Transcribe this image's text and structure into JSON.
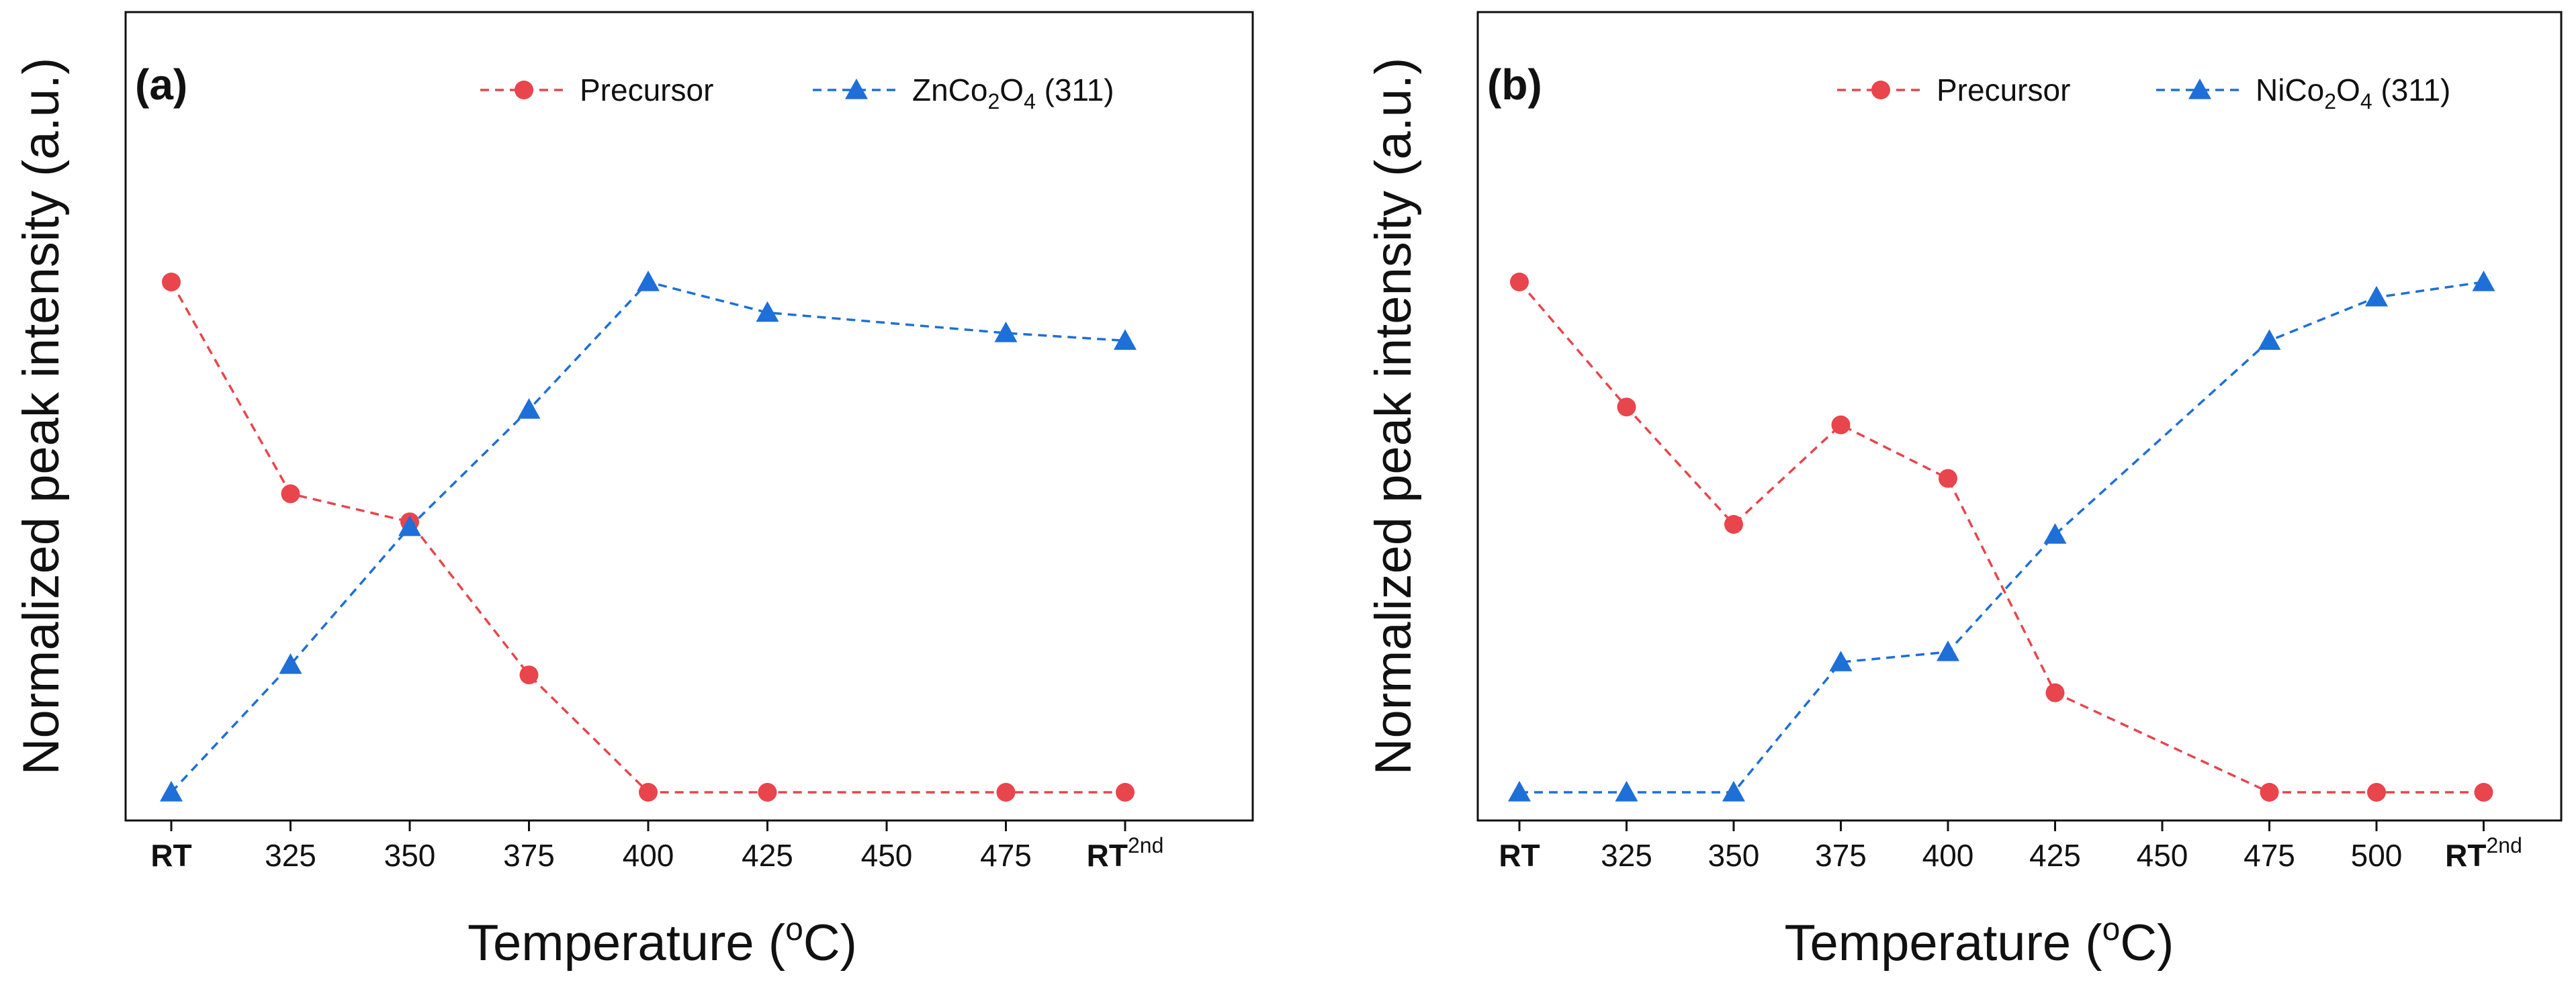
{
  "colors": {
    "precursor": "#e8454c",
    "spinel": "#1e6fd8",
    "axis": "#111111"
  },
  "chart_data": [
    {
      "type": "line",
      "panel_label": "(a)",
      "xlabel": "Temperature (oC)",
      "ylabel": "Normalized peak intensity (a.u.)",
      "tick_labels": [
        {
          "label": "RT",
          "sup": "",
          "bold": true
        },
        {
          "label": "325",
          "sup": "",
          "bold": false
        },
        {
          "label": "350",
          "sup": "",
          "bold": false
        },
        {
          "label": "375",
          "sup": "",
          "bold": false
        },
        {
          "label": "400",
          "sup": "",
          "bold": false
        },
        {
          "label": "425",
          "sup": "",
          "bold": false
        },
        {
          "label": "450",
          "sup": "",
          "bold": false
        },
        {
          "label": "475",
          "sup": "",
          "bold": false
        },
        {
          "label": "RT",
          "sup": "2nd",
          "bold": true
        }
      ],
      "ylim": [
        0,
        1
      ],
      "series": [
        {
          "name": "Precursor",
          "color_key": "precursor",
          "marker": "circle",
          "x": [
            0,
            1,
            2,
            3,
            4,
            5,
            7,
            8
          ],
          "values": [
            1.0,
            0.585,
            0.53,
            0.23,
            0.0,
            0.0,
            0.0,
            0.0
          ]
        },
        {
          "name": "ZnCo2O4 (311)",
          "color_key": "spinel",
          "marker": "triangle",
          "x": [
            0,
            1,
            2,
            3,
            4,
            5,
            7,
            8
          ],
          "values": [
            0.0,
            0.25,
            0.52,
            0.75,
            1.0,
            0.94,
            0.9,
            0.885
          ]
        }
      ]
    },
    {
      "type": "line",
      "panel_label": "(b)",
      "xlabel": "Temperature (oC)",
      "ylabel": "Normalized peak intensity (a.u.)",
      "tick_labels": [
        {
          "label": "RT",
          "sup": "",
          "bold": true
        },
        {
          "label": "325",
          "sup": "",
          "bold": false
        },
        {
          "label": "350",
          "sup": "",
          "bold": false
        },
        {
          "label": "375",
          "sup": "",
          "bold": false
        },
        {
          "label": "400",
          "sup": "",
          "bold": false
        },
        {
          "label": "425",
          "sup": "",
          "bold": false
        },
        {
          "label": "450",
          "sup": "",
          "bold": false
        },
        {
          "label": "475",
          "sup": "",
          "bold": false
        },
        {
          "label": "500",
          "sup": "",
          "bold": false
        },
        {
          "label": "RT",
          "sup": "2nd",
          "bold": true
        }
      ],
      "ylim": [
        0,
        1
      ],
      "series": [
        {
          "name": "Precursor",
          "color_key": "precursor",
          "marker": "circle",
          "x": [
            0,
            1,
            2,
            3,
            4,
            5,
            7,
            8,
            9
          ],
          "values": [
            1.0,
            0.755,
            0.525,
            0.72,
            0.615,
            0.195,
            0.0,
            0.0,
            0.0
          ]
        },
        {
          "name": "NiCo2O4 (311)",
          "color_key": "spinel",
          "marker": "triangle",
          "x": [
            0,
            1,
            2,
            3,
            4,
            5,
            7,
            8,
            9
          ],
          "values": [
            0.0,
            0.0,
            0.0,
            0.255,
            0.275,
            0.505,
            0.885,
            0.97,
            1.0
          ]
        }
      ]
    }
  ]
}
